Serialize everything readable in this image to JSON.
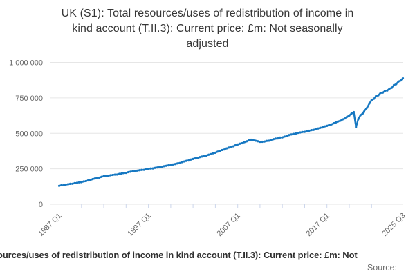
{
  "title": {
    "lines": [
      "UK (S1): Total resources/uses of redistribution of income in",
      "kind account (T.II.3): Current price: £m: Not seasonally",
      "adjusted"
    ]
  },
  "footer": {
    "caption_fragment": "ources/uses of redistribution of income in kind account (T.II.3): Current price: £m: Not",
    "source_label": "Source:"
  },
  "chart_data": {
    "type": "line",
    "title": "UK (S1): Total resources/uses of redistribution of income in kind account (T.II.3): Current price: £m: Not seasonally adjusted",
    "xlabel": "",
    "ylabel": "",
    "ylim": [
      0,
      1000000
    ],
    "grid": "horizontal-gridlines",
    "legend": "none",
    "line_color": "#1678c2",
    "axis_line_color": "#ccd6eb",
    "gridline_color": "#e6e6e6",
    "x_range": {
      "start": "1987 Q1",
      "end": "2025 Q3",
      "frequency": "quarterly",
      "points": 155
    },
    "x_tick_labels": [
      "1987 Q1",
      "1997 Q1",
      "2007 Q1",
      "2017 Q1",
      "2025 Q3"
    ],
    "y_ticks": [
      0,
      250000,
      500000,
      750000,
      1000000
    ],
    "y_tick_labels": [
      "0",
      "250 000",
      "500 000",
      "750 000",
      "1 000 000"
    ],
    "series": [
      {
        "name": "Total resources/uses of redistribution of income in kind account (T.II.3), current price, £m, NSA",
        "values": [
          130000,
          134000,
          134000,
          139000,
          141000,
          144000,
          144500,
          149000,
          151000,
          154500,
          155500,
          160500,
          163000,
          168000,
          170500,
          177000,
          181500,
          185500,
          187500,
          193500,
          197500,
          199750,
          200000,
          204250,
          206500,
          209000,
          209500,
          214000,
          216500,
          219750,
          221000,
          226250,
          229500,
          232000,
          232500,
          237000,
          239500,
          242000,
          242500,
          247000,
          249500,
          252000,
          252500,
          257000,
          259500,
          262500,
          263500,
          268500,
          271500,
          274500,
          275500,
          280500,
          283500,
          288000,
          290500,
          297000,
          301500,
          306000,
          308500,
          315000,
          319500,
          323750,
          326000,
          332250,
          336500,
          340750,
          343000,
          349250,
          353500,
          359250,
          363000,
          370750,
          376500,
          382250,
          386000,
          393750,
          399500,
          405000,
          408500,
          416000,
          421500,
          427000,
          430500,
          438000,
          443500,
          450000,
          455000,
          451500,
          448000,
          444000,
          440000,
          440500,
          442000,
          446750,
          448000,
          453250,
          458500,
          462750,
          464000,
          470250,
          471500,
          477250,
          480000,
          487750,
          492000,
          496000,
          498000,
          503000,
          506000,
          509500,
          510500,
          515500,
          518500,
          522500,
          524500,
          530500,
          534000,
          539000,
          542000,
          549000,
          553000,
          559000,
          563000,
          571000,
          577000,
          584000,
          589000,
          598000,
          605000,
          617000,
          626000,
          640000,
          650000,
          545000,
          600000,
          628000,
          640000,
          666000,
          681000,
          711000,
          734000,
          744000,
          763000,
          768000,
          785000,
          787000,
          800000,
          802000,
          815000,
          821000,
          840000,
          847000,
          865000,
          872000,
          888000
        ]
      }
    ]
  }
}
